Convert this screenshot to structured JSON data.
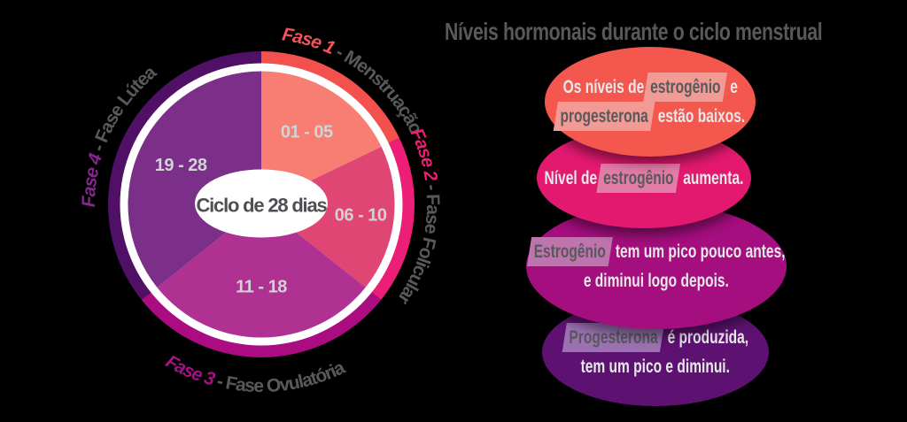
{
  "background": "#000000",
  "right_panel": {
    "title": "Níveis hormonais durante o ciclo menstrual",
    "title_color": "#58595B",
    "body_text_color": "#E7E8E9",
    "highlight_text_color": "#58595B",
    "bubbles": [
      {
        "name": "fase-1-hormonios",
        "color": "#F4574D",
        "highlight_bg": "#F29B95",
        "lines": [
          [
            {
              "t": "Os níveis de",
              "hl": false
            },
            {
              "t": "estrogênio",
              "hl": true
            },
            {
              "t": "e",
              "hl": false
            }
          ],
          [
            {
              "t": "progesterona",
              "hl": true
            },
            {
              "t": "estão baixos.",
              "hl": false
            }
          ]
        ]
      },
      {
        "name": "fase-2-hormonios",
        "color": "#E2196F",
        "highlight_bg": "#E27CA7",
        "lines": [
          [
            {
              "t": "Nível de",
              "hl": false
            },
            {
              "t": "estrogênio",
              "hl": true
            },
            {
              "t": "aumenta.",
              "hl": false
            }
          ]
        ]
      },
      {
        "name": "fase-3-hormonios",
        "color": "#A40E7E",
        "highlight_bg": "#BF74AE",
        "lines": [
          [
            {
              "t": "Estrogênio",
              "hl": true
            },
            {
              "t": "tem um pico pouco antes,",
              "hl": false
            }
          ],
          [
            {
              "t": "e diminui logo depois.",
              "hl": false
            }
          ]
        ]
      },
      {
        "name": "fase-4-hormonios",
        "color": "#5D1271",
        "highlight_bg": "#9B71B2",
        "lines": [
          [
            {
              "t": "Progesterona",
              "hl": true
            },
            {
              "t": "é produzida,",
              "hl": false
            }
          ],
          [
            {
              "t": "tem um pico e diminui.",
              "hl": false
            }
          ]
        ]
      }
    ]
  },
  "chart_data": {
    "type": "pie",
    "title": "Ciclo de 28 dias",
    "total_days": 28,
    "start_angle_deg": 0,
    "direction": "clockwise",
    "categories": [
      "Fase 1 - Menstruação",
      "Fase 2 - Fase Folicular",
      "Fase 3 - Fase Ovulatória",
      "Fase 4 - Fase Lútea"
    ],
    "values": [
      5,
      5,
      8,
      10
    ],
    "slices": [
      {
        "phase": "Fase 1",
        "name": "Menstruação",
        "days": 5,
        "day_range": "01 - 05",
        "color": "#F87D72",
        "ring_color": "#F3514E",
        "phase_color": "#F4525B"
      },
      {
        "phase": "Fase 2",
        "name": "Fase Folicular",
        "days": 5,
        "day_range": "06 - 10",
        "color": "#E04673",
        "ring_color": "#EC1E78",
        "phase_color": "#EC1E6F"
      },
      {
        "phase": "Fase 3",
        "name": "Fase Ovulatória",
        "days": 8,
        "day_range": "11 - 18",
        "color": "#AF3192",
        "ring_color": "#AC0C82",
        "phase_color": "#A31283"
      },
      {
        "phase": "Fase 4",
        "name": "Fase Lútea",
        "days": 10,
        "day_range": "19 - 28",
        "color": "#7B2F88",
        "ring_color": "#4F1066",
        "phase_color": "#84278C"
      }
    ],
    "separator": " - ",
    "phase_name_color": "#58595B",
    "day_label_color": "#D1D3D4",
    "center_label": "Ciclo de 28 dias",
    "center_text_color": "#4E4F52",
    "center_fill": "#FFFFFF",
    "legend_position": "around-pie",
    "grid": false
  }
}
